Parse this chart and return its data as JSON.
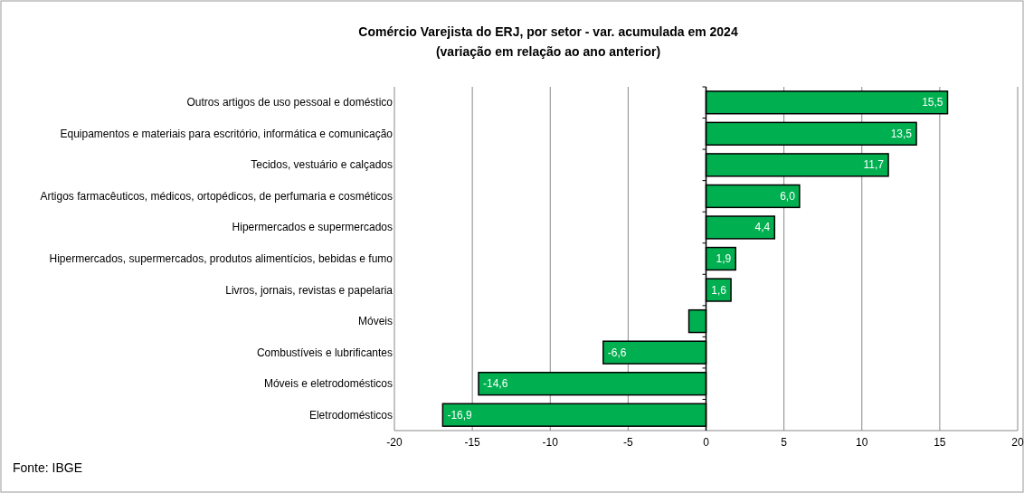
{
  "chart_data": {
    "type": "bar",
    "orientation": "horizontal",
    "title": "Comércio Varejista do ERJ, por setor - var. acumulada em 2024",
    "subtitle": "(variação em relação ao ano anterior)",
    "categories": [
      "Outros artigos de uso pessoal e doméstico",
      "Equipamentos e materiais para escritório, informática e comunicação",
      "Tecidos, vestuário e calçados",
      "Artigos farmacêuticos, médicos, ortopédicos, de perfumaria e cosméticos",
      "Hipermercados e supermercados",
      "Hipermercados, supermercados, produtos alimentícios, bebidas e fumo",
      "Livros, jornais, revistas e papelaria",
      "Móveis",
      "Combustíveis e lubrificantes",
      "Móveis e eletrodomésticos",
      "Eletrodomésticos"
    ],
    "values": [
      15.5,
      13.5,
      11.7,
      6.0,
      4.4,
      1.9,
      1.6,
      -1.1,
      -6.6,
      -14.6,
      -16.9
    ],
    "value_labels": [
      "15,5",
      "13,5",
      "11,7",
      "6,0",
      "4,4",
      "1,9",
      "1,6",
      null,
      "-6,6",
      "-14,6",
      "-16,9"
    ],
    "color": "#00b050",
    "xlim": [
      -20,
      20
    ],
    "xticks": [
      -20,
      -15,
      -10,
      -5,
      0,
      5,
      10,
      15,
      20
    ],
    "grid": "x",
    "annotations": [
      "Fonte: IBGE"
    ]
  }
}
